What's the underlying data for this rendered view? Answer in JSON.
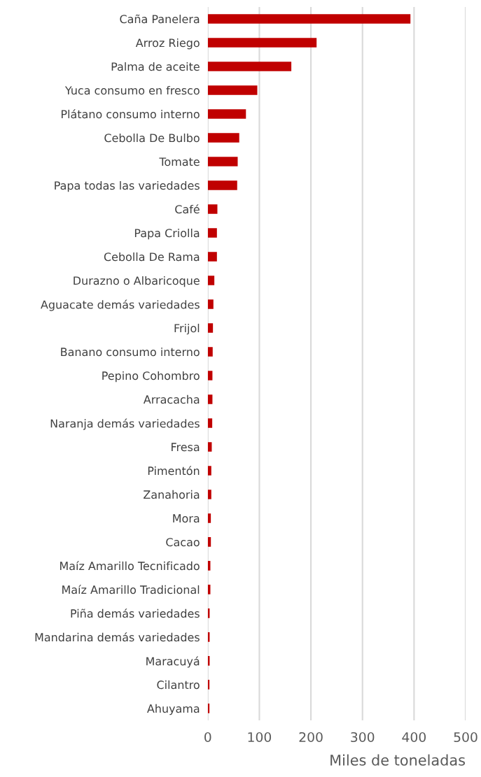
{
  "chart_data": {
    "type": "bar",
    "orientation": "horizontal",
    "xlabel": "Miles de toneladas",
    "categories": [
      "Caña Panelera",
      "Arroz Riego",
      "Palma de aceite",
      "Yuca consumo en fresco",
      "Plátano consumo interno",
      "Cebolla De Bulbo",
      "Tomate",
      "Papa todas las variedades",
      "Café",
      "Papa Criolla",
      "Cebolla De Rama",
      "Durazno o Albaricoque",
      "Aguacate demás variedades",
      "Frijol",
      "Banano consumo interno",
      "Pepino Cohombro",
      "Arracacha",
      "Naranja demás variedades",
      "Fresa",
      "Pimentón",
      "Zanahoria",
      "Mora",
      "Cacao",
      "Maíz Amarillo Tecnificado",
      "Maíz Amarillo Tradicional",
      "Piña demás variedades",
      "Mandarina demás variedades",
      "Maracuyá",
      "Cilantro",
      "Ahuyama"
    ],
    "values": [
      393,
      211,
      162,
      96,
      74,
      61,
      58,
      57,
      18.6,
      17.7,
      17.7,
      12.7,
      10.9,
      10,
      9.5,
      9,
      9,
      8.6,
      7.7,
      6.8,
      6.8,
      5.9,
      6,
      5,
      5,
      3.6,
      3.6,
      3.6,
      3.2,
      3.2
    ],
    "color": "#c00000",
    "xlim": [
      0,
      500
    ],
    "xticks": [
      0,
      100,
      200,
      300,
      400,
      500
    ],
    "grid": "x"
  }
}
